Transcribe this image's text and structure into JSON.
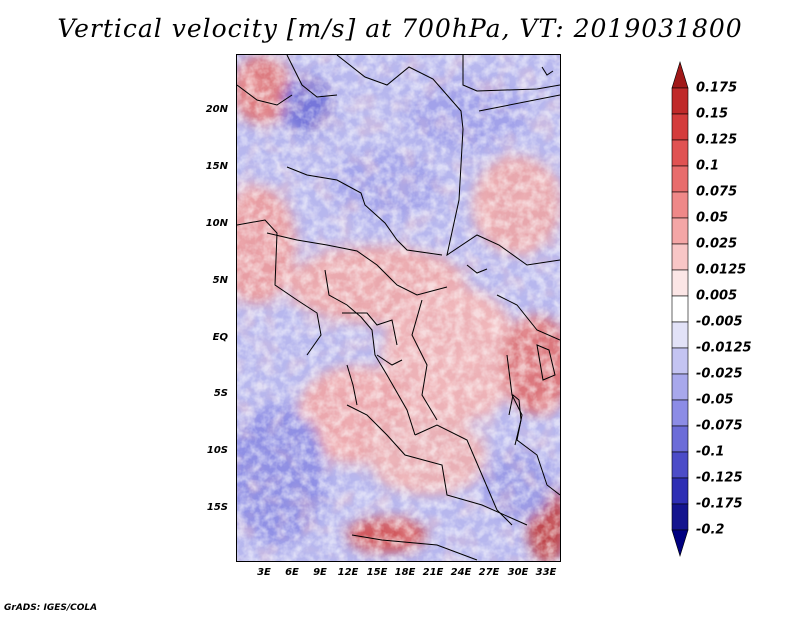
{
  "title": "Vertical velocity [m/s] at 700hPa, VT: 2019031800",
  "footer": "GrADS: IGES/COLA",
  "map": {
    "y_axis_labels": [
      "20N",
      "15N",
      "10N",
      "5N",
      "EQ",
      "5S",
      "10S",
      "15S"
    ],
    "x_axis_labels": [
      "3E",
      "6E",
      "9E",
      "12E",
      "15E",
      "18E",
      "21E",
      "24E",
      "27E",
      "30E",
      "33E"
    ]
  },
  "colorbar": {
    "levels": [
      "0.175",
      "0.15",
      "0.125",
      "0.1",
      "0.075",
      "0.05",
      "0.025",
      "0.0125",
      "0.005",
      "-0.005",
      "-0.0125",
      "-0.025",
      "-0.05",
      "-0.075",
      "-0.1",
      "-0.125",
      "-0.175",
      "-0.2"
    ],
    "colors": [
      "#a01818",
      "#c02a2a",
      "#d43c3c",
      "#e05252",
      "#e86c6c",
      "#ef8888",
      "#f4a6a6",
      "#f8c6c6",
      "#fce6e6",
      "#ffffff",
      "#e2e2f8",
      "#c4c4f2",
      "#a8a8ec",
      "#8c8ce6",
      "#6c6cd8",
      "#4c4cc8",
      "#2e2eb4",
      "#14148e",
      "#000080"
    ]
  }
}
